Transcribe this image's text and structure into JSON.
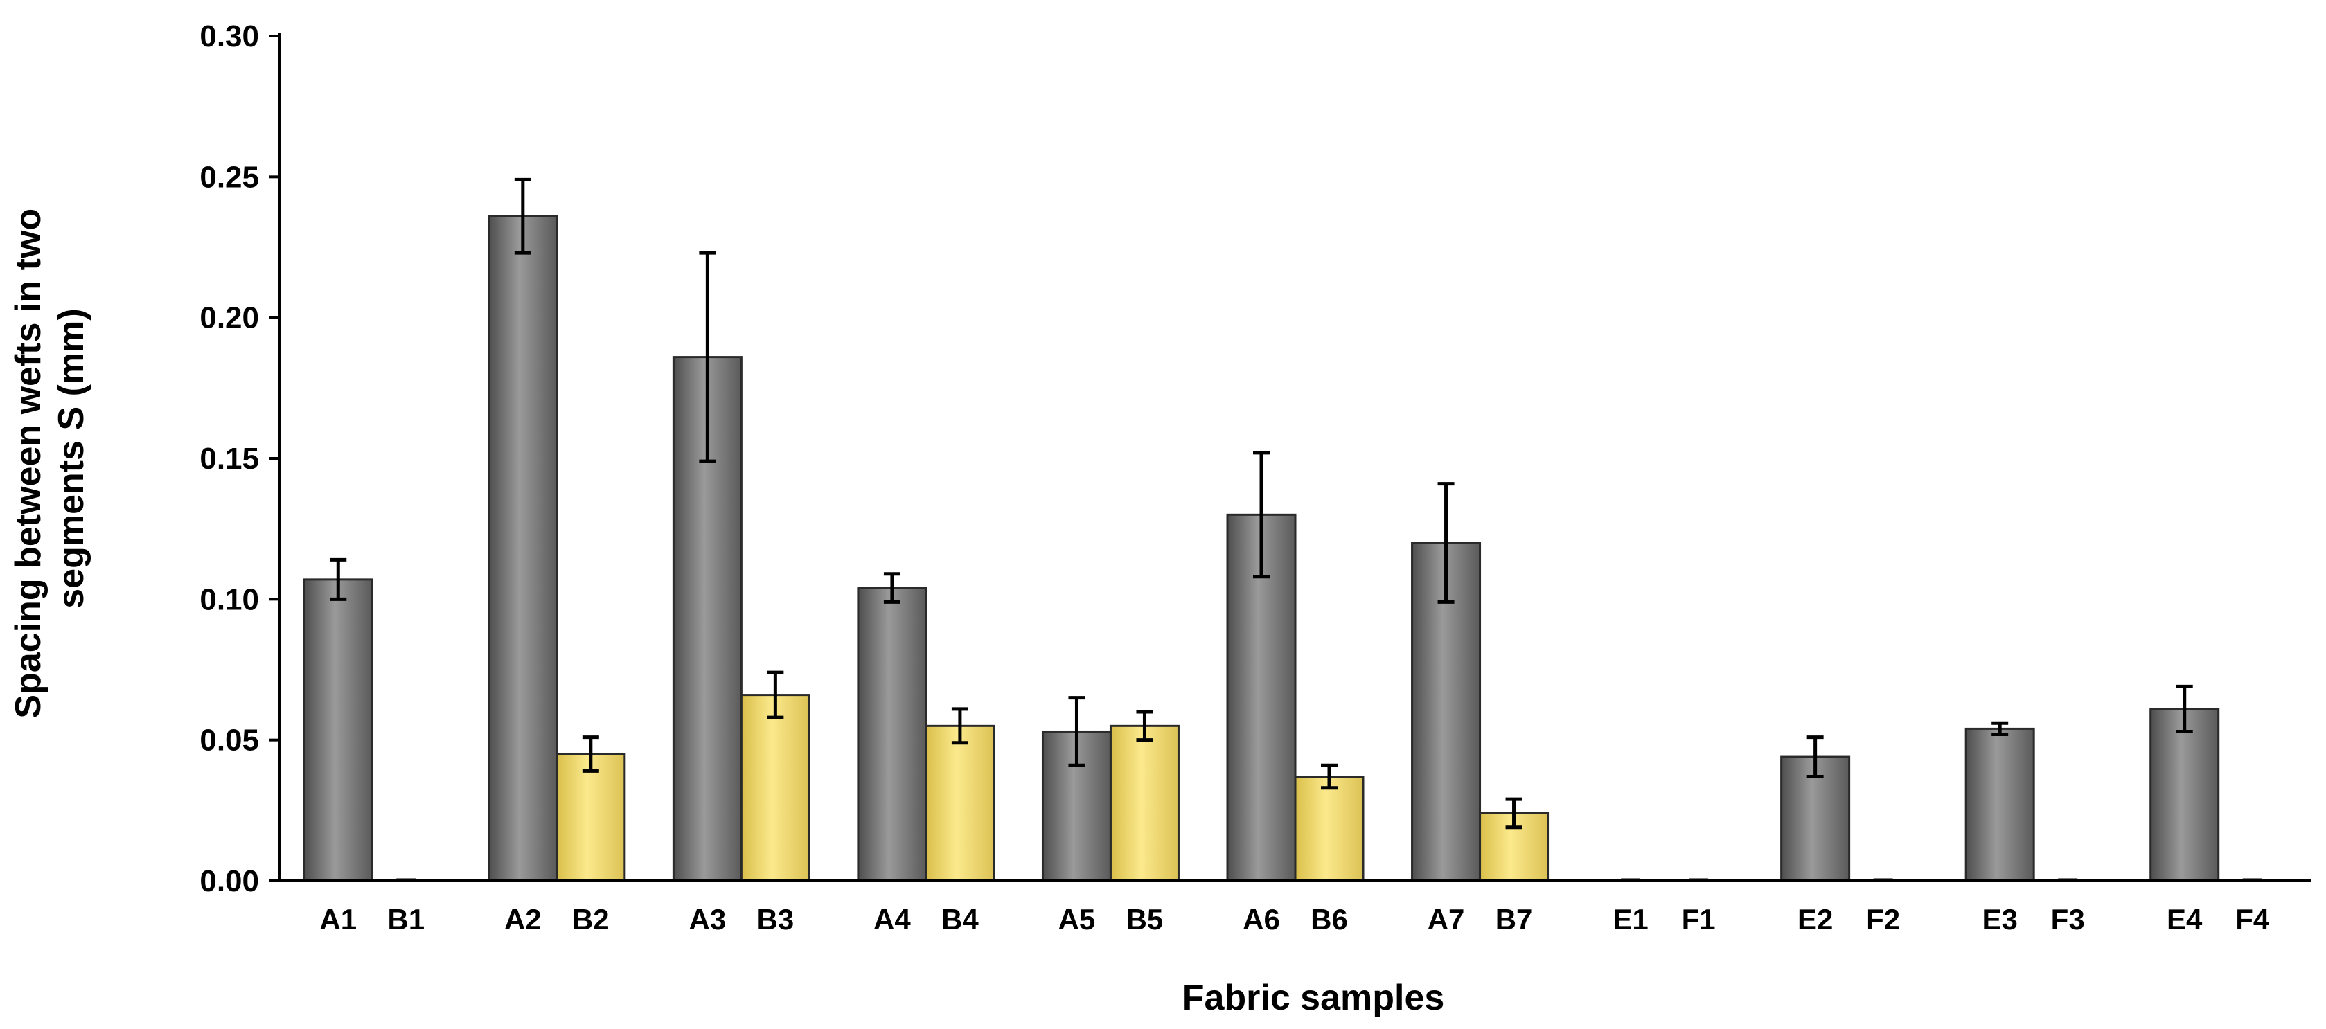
{
  "chart_data": {
    "type": "bar",
    "xlabel": "Fabric samples",
    "ylabel_lines": [
      "Spacing between wefts in two",
      "segments S (mm)"
    ],
    "ylim": [
      0,
      0.3
    ],
    "y_ticks": [
      "0.00",
      "0.05",
      "0.10",
      "0.15",
      "0.20",
      "0.25",
      "0.30"
    ],
    "grid": false,
    "legend": "none",
    "colors": {
      "series_a": "#7a7a7a",
      "series_b": "#f3dc73",
      "error_bar": "#000000"
    },
    "categories": [
      [
        "A1",
        "B1"
      ],
      [
        "A2",
        "B2"
      ],
      [
        "A3",
        "B3"
      ],
      [
        "A4",
        "B4"
      ],
      [
        "A5",
        "B5"
      ],
      [
        "A6",
        "B6"
      ],
      [
        "A7",
        "B7"
      ],
      [
        "E1",
        "F1"
      ],
      [
        "E2",
        "F2"
      ],
      [
        "E3",
        "F3"
      ],
      [
        "E4",
        "F4"
      ]
    ],
    "series": [
      {
        "values": [
          0.107,
          0.236,
          0.186,
          0.104,
          0.053,
          0.13,
          0.12,
          0.0,
          0.044,
          0.054,
          0.061
        ],
        "errors": [
          0.007,
          0.013,
          0.037,
          0.005,
          0.012,
          0.022,
          0.021,
          0.0,
          0.007,
          0.002,
          0.008
        ]
      },
      {
        "values": [
          0.0,
          0.045,
          0.066,
          0.055,
          0.055,
          0.037,
          0.024,
          0.0,
          0.0,
          0.0,
          0.0
        ],
        "errors": [
          0.0,
          0.006,
          0.008,
          0.006,
          0.005,
          0.004,
          0.005,
          0.0,
          0.0,
          0.0,
          0.0
        ]
      }
    ]
  }
}
